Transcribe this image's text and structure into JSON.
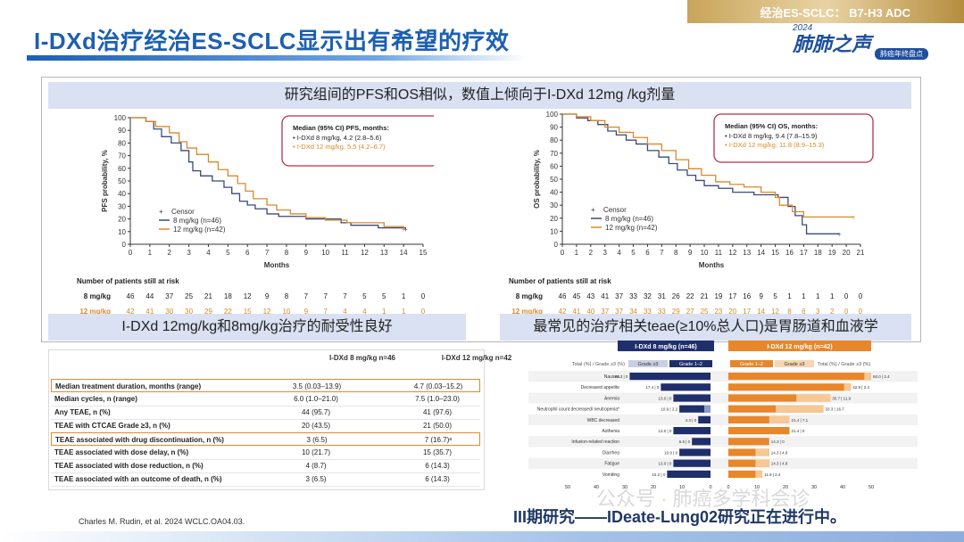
{
  "header": {
    "topic": "经治ES-SCLC： B7-H3  ADC",
    "title": "I-DXd治疗经治ES-SCLC显示出有希望的疗效",
    "logo_year": "2024",
    "logo_text": "肺肺之声",
    "logo_tag": "肺癌年终盘点"
  },
  "banners": {
    "top": "研究组间的PFS和OS相似，数值上倾向于I-DXd 12mg /kg剂量",
    "left": "I-DXd 12mg/kg和8mg/kg治疗的耐受性良好",
    "right": "最常见的治疗相关teae(≥10%总人口)是胃肠道和血液学"
  },
  "colors": {
    "dose8": "#3a4a7a",
    "dose12": "#d9892a",
    "blue_bar": "#1f2f6b",
    "orange_bar": "#e8862a"
  },
  "chart_data": [
    {
      "type": "line",
      "ylabel": "PFS probability, %",
      "xlabel": "Months",
      "ylim": [
        0,
        100
      ],
      "xlim": [
        0,
        15
      ],
      "xticks": [
        0,
        1,
        2,
        3,
        4,
        5,
        6,
        7,
        8,
        9,
        10,
        11,
        12,
        13,
        14,
        15
      ],
      "yticks": [
        0,
        10,
        20,
        30,
        40,
        50,
        60,
        70,
        80,
        90,
        100
      ],
      "legend": {
        "censor": "Censor",
        "entries": [
          "8 mg/kg (n=46)",
          "12 mg/kg (n=42)"
        ]
      },
      "annotation": {
        "title": "Median (95% CI) PFS, months:",
        "lines": [
          "• I-DXd 8 mg/kg, 4.2 (2.8–5.6)",
          "• I-DXd 12 mg/kg, 5.5 (4.2–6.7)"
        ]
      },
      "series": [
        {
          "name": "8 mg/kg (n=46)",
          "steps": [
            [
              0,
              100
            ],
            [
              0.8,
              97
            ],
            [
              1.2,
              91
            ],
            [
              1.6,
              85
            ],
            [
              2.1,
              80
            ],
            [
              2.6,
              74
            ],
            [
              3.0,
              65
            ],
            [
              3.2,
              58
            ],
            [
              3.6,
              54
            ],
            [
              4.2,
              50
            ],
            [
              4.8,
              45
            ],
            [
              5.2,
              40
            ],
            [
              5.6,
              34
            ],
            [
              6.0,
              31
            ],
            [
              6.4,
              28
            ],
            [
              7.0,
              24
            ],
            [
              7.6,
              22
            ],
            [
              9.0,
              20
            ],
            [
              10.8,
              17
            ],
            [
              11.3,
              15
            ],
            [
              12.7,
              13
            ],
            [
              14.1,
              12
            ]
          ]
        },
        {
          "name": "12 mg/kg (n=42)",
          "steps": [
            [
              0,
              100
            ],
            [
              0.8,
              97
            ],
            [
              1.3,
              93
            ],
            [
              2.0,
              88
            ],
            [
              2.5,
              81
            ],
            [
              2.9,
              76
            ],
            [
              3.4,
              71
            ],
            [
              4.0,
              65
            ],
            [
              4.5,
              59
            ],
            [
              5.0,
              54
            ],
            [
              5.5,
              48
            ],
            [
              5.9,
              42
            ],
            [
              6.3,
              36
            ],
            [
              7.0,
              31
            ],
            [
              7.5,
              27
            ],
            [
              8.2,
              24
            ],
            [
              9.0,
              21
            ],
            [
              10.0,
              19
            ],
            [
              11.1,
              17
            ],
            [
              13.0,
              14
            ],
            [
              14.0,
              12
            ]
          ]
        }
      ],
      "risk_table": {
        "title": "Number of patients still at risk",
        "rows": [
          {
            "label": "8 mg/kg",
            "values": [
              46,
              44,
              37,
              25,
              21,
              18,
              12,
              9,
              8,
              7,
              7,
              7,
              5,
              5,
              1,
              0
            ]
          },
          {
            "label": "12 mg/kg",
            "values": [
              42,
              41,
              30,
              30,
              29,
              22,
              15,
              12,
              10,
              9,
              7,
              4,
              4,
              1,
              1,
              0
            ]
          }
        ]
      }
    },
    {
      "type": "line",
      "ylabel": "OS probability, %",
      "xlabel": "Months",
      "ylim": [
        0,
        100
      ],
      "xlim": [
        0,
        21
      ],
      "xticks": [
        0,
        1,
        2,
        3,
        4,
        5,
        6,
        7,
        8,
        9,
        10,
        11,
        12,
        13,
        14,
        15,
        16,
        17,
        18,
        19,
        20,
        21
      ],
      "yticks": [
        0,
        10,
        20,
        30,
        40,
        50,
        60,
        70,
        80,
        90,
        100
      ],
      "legend": {
        "censor": "Censor",
        "entries": [
          "8 mg/kg (n=46)",
          "12 mg/kg (n=42)"
        ]
      },
      "annotation": {
        "title": "Median (95% CI) OS, months:",
        "lines": [
          "• I-DXd 8 mg/kg, 9.4 (7.8–15.9)",
          "• I-DXd 12 mg/kg, 11.8 (8.9–15.3)"
        ]
      },
      "series": [
        {
          "name": "8 mg/kg (n=46)",
          "steps": [
            [
              0,
              100
            ],
            [
              1.0,
              97
            ],
            [
              1.8,
              95
            ],
            [
              2.5,
              92
            ],
            [
              3.2,
              87
            ],
            [
              3.8,
              84
            ],
            [
              4.5,
              80
            ],
            [
              5.2,
              77
            ],
            [
              6.0,
              72
            ],
            [
              6.8,
              67
            ],
            [
              7.5,
              62
            ],
            [
              8.1,
              57
            ],
            [
              8.8,
              53
            ],
            [
              9.4,
              49
            ],
            [
              10.0,
              45
            ],
            [
              11.0,
              43
            ],
            [
              12.0,
              40
            ],
            [
              13.5,
              38
            ],
            [
              15.2,
              36
            ],
            [
              15.9,
              29
            ],
            [
              16.4,
              22
            ],
            [
              16.9,
              15
            ],
            [
              17.2,
              8
            ],
            [
              19.5,
              8
            ]
          ]
        },
        {
          "name": "12 mg/kg (n=42)",
          "steps": [
            [
              0,
              100
            ],
            [
              1.0,
              98
            ],
            [
              2.0,
              95
            ],
            [
              3.0,
              90
            ],
            [
              4.0,
              86
            ],
            [
              5.0,
              82
            ],
            [
              6.0,
              77
            ],
            [
              7.0,
              72
            ],
            [
              8.0,
              65
            ],
            [
              8.9,
              58
            ],
            [
              9.8,
              53
            ],
            [
              10.8,
              48
            ],
            [
              11.8,
              46
            ],
            [
              12.8,
              44
            ],
            [
              14.0,
              40
            ],
            [
              15.0,
              36
            ],
            [
              15.3,
              30
            ],
            [
              16.2,
              25
            ],
            [
              17.0,
              21
            ],
            [
              20.5,
              21
            ]
          ]
        }
      ],
      "risk_table": {
        "title": "Number of patients still at risk",
        "rows": [
          {
            "label": "8 mg/kg",
            "values": [
              46,
              45,
              43,
              41,
              37,
              33,
              32,
              31,
              26,
              22,
              21,
              19,
              17,
              16,
              9,
              5,
              1,
              1,
              1,
              1,
              0,
              0
            ]
          },
          {
            "label": "12 mg/kg",
            "values": [
              42,
              41,
              40,
              37,
              37,
              34,
              33,
              33,
              29,
              27,
              25,
              23,
              20,
              17,
              14,
              12,
              8,
              6,
              3,
              2,
              0,
              0
            ]
          }
        ]
      }
    },
    {
      "type": "bar",
      "orientation": "horizontal",
      "title": "I-DXd 8 mg/kg (n=46)",
      "legend": [
        "Total (%) / Grade ≥3 (%)",
        "Grade ≥3",
        "Grade 1–2"
      ],
      "categories": [
        "Nausea",
        "Decreased appetite",
        "Anemia",
        "Neutrophil count decreased/ neutropenia*",
        "WBC decreased",
        "Asthenia",
        "Infusion-related reaction",
        "Diarrhea",
        "Fatigue",
        "Vomiting"
      ],
      "total": [
        28.3,
        17.4,
        13.0,
        10.9,
        4.3,
        13.0,
        6.5,
        10.9,
        13.0,
        15.2
      ],
      "grade3": [
        0,
        0,
        0,
        2.2,
        0,
        0,
        0,
        0,
        0,
        0
      ],
      "labels": [
        "28.3 | 0",
        "17.4 | 0",
        "13.0 | 0",
        "10.9 | 2.2",
        "4.3 | 0",
        "13.0 | 0",
        "6.5 | 0",
        "10.9 | 0",
        "13.0 | 0",
        "15.2 | 0"
      ],
      "xticks": [
        50,
        40,
        30,
        20,
        10,
        0
      ]
    },
    {
      "type": "bar",
      "orientation": "horizontal",
      "title": "I-DXd 12 mg/kg (n=42)",
      "legend": [
        "Grade 1–2",
        "Grade ≥3",
        "Total (%) / Grade ≥3 (%)"
      ],
      "categories": [
        "Nausea",
        "Decreased appetite",
        "Anemia",
        "Neutrophil count decreased/ neutropenia*",
        "WBC decreased",
        "Asthenia",
        "Infusion-related reaction",
        "Diarrhea",
        "Fatigue",
        "Vomiting"
      ],
      "total": [
        50.0,
        42.9,
        35.7,
        33.3,
        21.4,
        21.4,
        14.3,
        14.3,
        14.3,
        11.9
      ],
      "grade3": [
        2.4,
        2.4,
        11.9,
        16.7,
        7.1,
        0,
        0,
        4.8,
        4.8,
        2.4
      ],
      "labels": [
        "50.0 | 2.4",
        "42.9 | 2.4",
        "35.7 | 11.9",
        "33.3 | 16.7",
        "21.4 | 7.1",
        "21.4 | 0",
        "14.3 | 0",
        "14.3 | 4.8",
        "14.3 | 4.8",
        "11.9 | 2.4"
      ],
      "xticks": [
        0,
        10,
        20,
        30,
        40,
        50
      ]
    }
  ],
  "safety_table": {
    "col1": "I-DXd 8 mg/kg n=46",
    "col2": "I-DXd 12 mg/kg n=42",
    "rows": [
      {
        "label": "Median treatment duration, months (range)",
        "v1": "3.5 (0.03–13.9)",
        "v2": "4.7 (0.03–15.2)"
      },
      {
        "label": "Median cycles, n (range)",
        "v1": "6.0 (1.0–21.0)",
        "v2": "7.5 (1.0–23.0)"
      },
      {
        "label": "Any TEAE, n (%)",
        "v1": "44 (95.7)",
        "v2": "41 (97.6)"
      },
      {
        "label": "TEAE with CTCAE Grade ≥3, n (%)",
        "v1": "20 (43.5)",
        "v2": "21 (50.0)"
      },
      {
        "label": "TEAE associated with drug discontinuation, n (%)",
        "v1": "3 (6.5)",
        "v2": "7 (16.7)ᵃ"
      },
      {
        "label": "TEAE associated with dose delay, n (%)",
        "v1": "10 (21.7)",
        "v2": "15 (35.7)"
      },
      {
        "label": "TEAE associated with dose reduction, n (%)",
        "v1": "4 (8.7)",
        "v2": "6 (14.3)"
      },
      {
        "label": "TEAE associated with an outcome of death, n (%)",
        "v1": "3 (6.5)",
        "v2": "6 (14.3)"
      }
    ]
  },
  "footer": {
    "citation": "Charles M. Rudin, et al. 2024 WCLC.OA04.03.",
    "note": "III期研究——IDeate-Lung02研究正在进行中。",
    "watermark": "公众号 · 肺癌多学科会诊"
  }
}
